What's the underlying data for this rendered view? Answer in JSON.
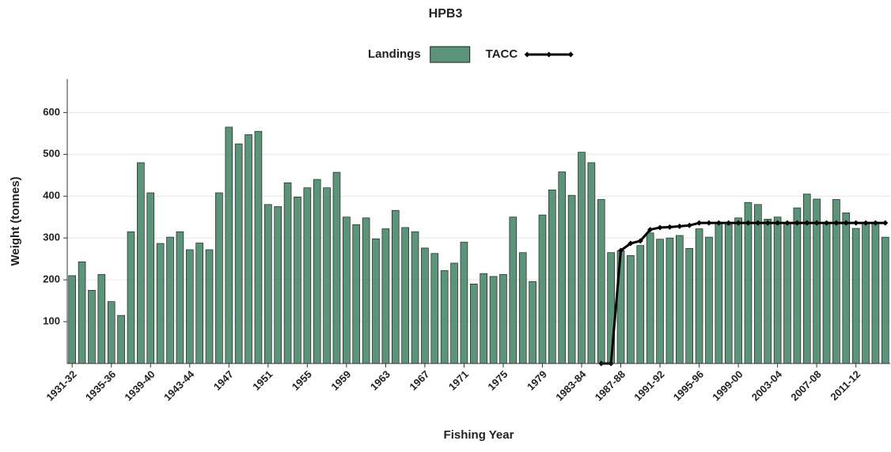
{
  "chart_data": {
    "type": "bar-line",
    "title": "HPB3",
    "x_label": "Fishing Year",
    "y_label": "Weight (tonnes)",
    "categories": [
      "1931-32",
      null,
      null,
      null,
      "1935-36",
      null,
      null,
      null,
      "1939-40",
      null,
      null,
      null,
      "1943-44",
      null,
      null,
      null,
      "1947",
      null,
      null,
      null,
      "1951",
      null,
      null,
      null,
      "1955",
      null,
      null,
      null,
      "1959",
      null,
      null,
      null,
      "1963",
      null,
      null,
      null,
      "1967",
      null,
      null,
      null,
      "1971",
      null,
      null,
      null,
      "1975",
      null,
      null,
      null,
      "1979",
      null,
      null,
      null,
      "1983-84",
      null,
      null,
      null,
      "1987-88",
      null,
      null,
      null,
      "1991-92",
      null,
      null,
      null,
      "1995-96",
      null,
      null,
      null,
      "1999-00",
      null,
      null,
      null,
      "2003-04",
      null,
      null,
      null,
      "2007-08",
      null,
      null,
      null,
      "2011-12",
      null,
      null,
      null
    ],
    "series": [
      {
        "name": "Landings",
        "kind": "bar",
        "color": "#5b9478",
        "values": [
          210,
          243,
          175,
          213,
          148,
          115,
          315,
          480,
          408,
          287,
          302,
          315,
          272,
          288,
          272,
          408,
          565,
          525,
          547,
          555,
          380,
          375,
          432,
          398,
          420,
          440,
          420,
          457,
          350,
          332,
          348,
          298,
          322,
          366,
          325,
          315,
          276,
          263,
          222,
          240,
          290,
          190,
          215,
          208,
          213,
          350,
          265,
          196,
          355,
          415,
          458,
          402,
          505,
          480,
          392,
          265,
          270,
          258,
          282,
          312,
          297,
          300,
          306,
          275,
          322,
          302,
          337,
          332,
          348,
          385,
          380,
          345,
          350,
          335,
          372,
          405,
          393,
          335,
          392,
          360,
          323,
          335,
          335,
          302
        ]
      },
      {
        "name": "TACC",
        "kind": "line",
        "color": "#000000",
        "values": [
          null,
          null,
          null,
          null,
          null,
          null,
          null,
          null,
          null,
          null,
          null,
          null,
          null,
          null,
          null,
          null,
          null,
          null,
          null,
          null,
          null,
          null,
          null,
          null,
          null,
          null,
          null,
          null,
          null,
          null,
          null,
          null,
          null,
          null,
          null,
          null,
          null,
          null,
          null,
          null,
          null,
          null,
          null,
          null,
          null,
          null,
          null,
          null,
          null,
          null,
          null,
          null,
          null,
          null,
          0,
          0,
          270,
          287,
          293,
          320,
          325,
          326,
          328,
          330,
          336,
          336,
          336,
          336,
          336,
          336,
          336,
          336,
          336,
          336,
          336,
          336,
          336,
          336,
          336,
          336,
          336,
          336,
          336,
          336
        ]
      }
    ],
    "ylim": [
      0,
      680
    ],
    "yticks": [
      100,
      200,
      300,
      400,
      500,
      600
    ],
    "grid": true
  }
}
